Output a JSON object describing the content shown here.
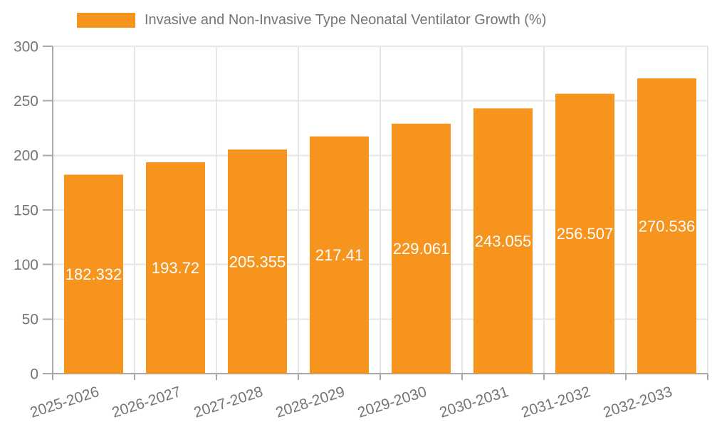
{
  "legend": {
    "label": "Invasive and Non-Invasive Type Neonatal Ventilator Growth (%)"
  },
  "chart_data": {
    "type": "bar",
    "title": "Invasive and Non-Invasive Type Neonatal Ventilator Growth (%)",
    "categories": [
      "2025-2026",
      "2026-2027",
      "2027-2028",
      "2028-2029",
      "2029-2030",
      "2030-2031",
      "2031-2032",
      "2032-2033"
    ],
    "values": [
      182.332,
      193.72,
      205.355,
      217.41,
      229.061,
      243.055,
      256.507,
      270.536
    ],
    "value_labels": [
      "182.332",
      "193.72",
      "205.355",
      "217.41",
      "229.061",
      "243.055",
      "256.507",
      "270.536"
    ],
    "xlabel": "",
    "ylabel": "",
    "ylim": [
      0,
      300
    ],
    "ytick_step": 50,
    "y_tick_labels": [
      "0",
      "50",
      "100",
      "150",
      "200",
      "250",
      "300"
    ],
    "grid": true,
    "legend_position": "top-left",
    "x_label_rotation_deg": -18,
    "colors": {
      "bar": "#F7941E",
      "grid": "#e6e6e6",
      "axis": "#a8a8a8",
      "tick_text": "#757575",
      "value_label": "#ffffff",
      "legend_text": "#757575"
    }
  }
}
